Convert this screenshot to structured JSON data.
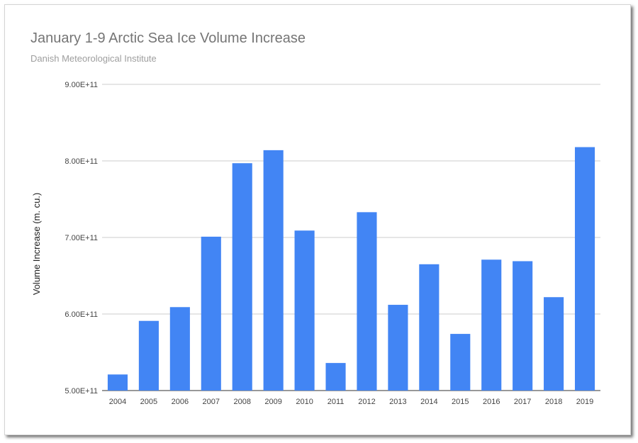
{
  "chart_data": {
    "type": "bar",
    "title": "January 1-9 Arctic Sea Ice Volume Increase",
    "subtitle": "Danish Meteorological Institute",
    "xlabel": "",
    "ylabel": "Volume Increase (m. cu.)",
    "ylim": [
      500000000000.0,
      900000000000.0
    ],
    "yticks": [
      500000000000.0,
      600000000000.0,
      700000000000.0,
      800000000000.0,
      900000000000.0
    ],
    "ytick_labels": [
      "5.00E+11",
      "6.00E+11",
      "7.00E+11",
      "8.00E+11",
      "9.00E+11"
    ],
    "grid": true,
    "legend": "none",
    "bar_color": "#4285f4",
    "categories": [
      "2004",
      "2005",
      "2006",
      "2007",
      "2008",
      "2009",
      "2010",
      "2011",
      "2012",
      "2013",
      "2014",
      "2015",
      "2016",
      "2017",
      "2018",
      "2019"
    ],
    "values": [
      521000000000.0,
      591000000000.0,
      609000000000.0,
      701000000000.0,
      797000000000.0,
      814000000000.0,
      709000000000.0,
      536000000000.0,
      733000000000.0,
      612000000000.0,
      665000000000.0,
      574000000000.0,
      671000000000.0,
      669000000000.0,
      622000000000.0,
      818000000000.0
    ]
  }
}
